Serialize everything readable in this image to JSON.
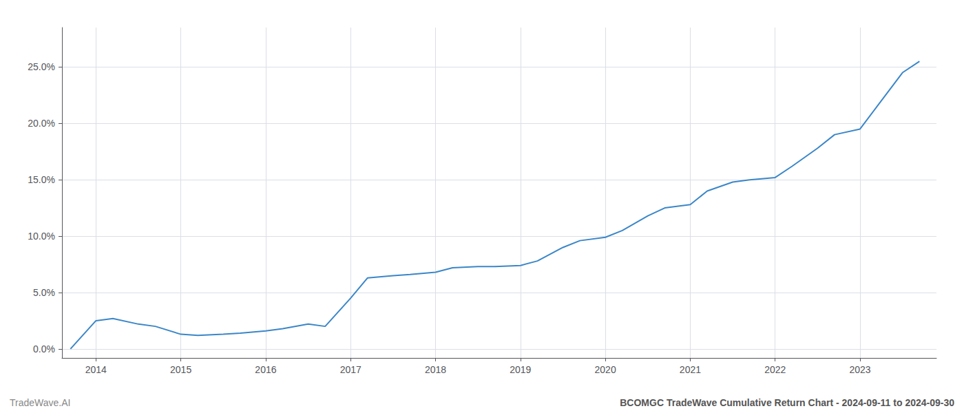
{
  "chart_data": {
    "type": "line",
    "annotations": [
      "TradeWave.AI",
      "BCOMGC TradeWave Cumulative Return Chart - 2024-09-11 to 2024-09-30"
    ],
    "x": [
      2013.7,
      2014.0,
      2014.2,
      2014.5,
      2014.7,
      2015.0,
      2015.2,
      2015.5,
      2015.7,
      2016.0,
      2016.2,
      2016.5,
      2016.7,
      2017.0,
      2017.2,
      2017.5,
      2017.7,
      2018.0,
      2018.2,
      2018.5,
      2018.7,
      2019.0,
      2019.2,
      2019.5,
      2019.7,
      2020.0,
      2020.2,
      2020.5,
      2020.7,
      2021.0,
      2021.2,
      2021.5,
      2021.7,
      2022.0,
      2022.2,
      2022.5,
      2022.7,
      2023.0,
      2023.2,
      2023.5,
      2023.7
    ],
    "values": [
      0.0,
      0.025,
      0.027,
      0.022,
      0.02,
      0.013,
      0.012,
      0.013,
      0.014,
      0.016,
      0.018,
      0.022,
      0.02,
      0.045,
      0.063,
      0.065,
      0.066,
      0.068,
      0.072,
      0.073,
      0.073,
      0.074,
      0.078,
      0.09,
      0.096,
      0.099,
      0.105,
      0.118,
      0.125,
      0.128,
      0.14,
      0.148,
      0.15,
      0.152,
      0.162,
      0.178,
      0.19,
      0.195,
      0.215,
      0.245,
      0.255
    ],
    "color": "#3a86c8",
    "xlim": [
      2013.6,
      2023.9
    ],
    "xticks": [
      2014,
      2015,
      2016,
      2017,
      2018,
      2019,
      2020,
      2021,
      2022,
      2023
    ],
    "ylim": [
      -0.008,
      0.285
    ],
    "yticks": [
      {
        "value": 0.0,
        "label": "0.0%"
      },
      {
        "value": 0.05,
        "label": "5.0%"
      },
      {
        "value": 0.1,
        "label": "10.0%"
      },
      {
        "value": 0.15,
        "label": "15.0%"
      },
      {
        "value": 0.2,
        "label": "20.0%"
      },
      {
        "value": 0.25,
        "label": "25.0%"
      }
    ],
    "grid": true
  }
}
